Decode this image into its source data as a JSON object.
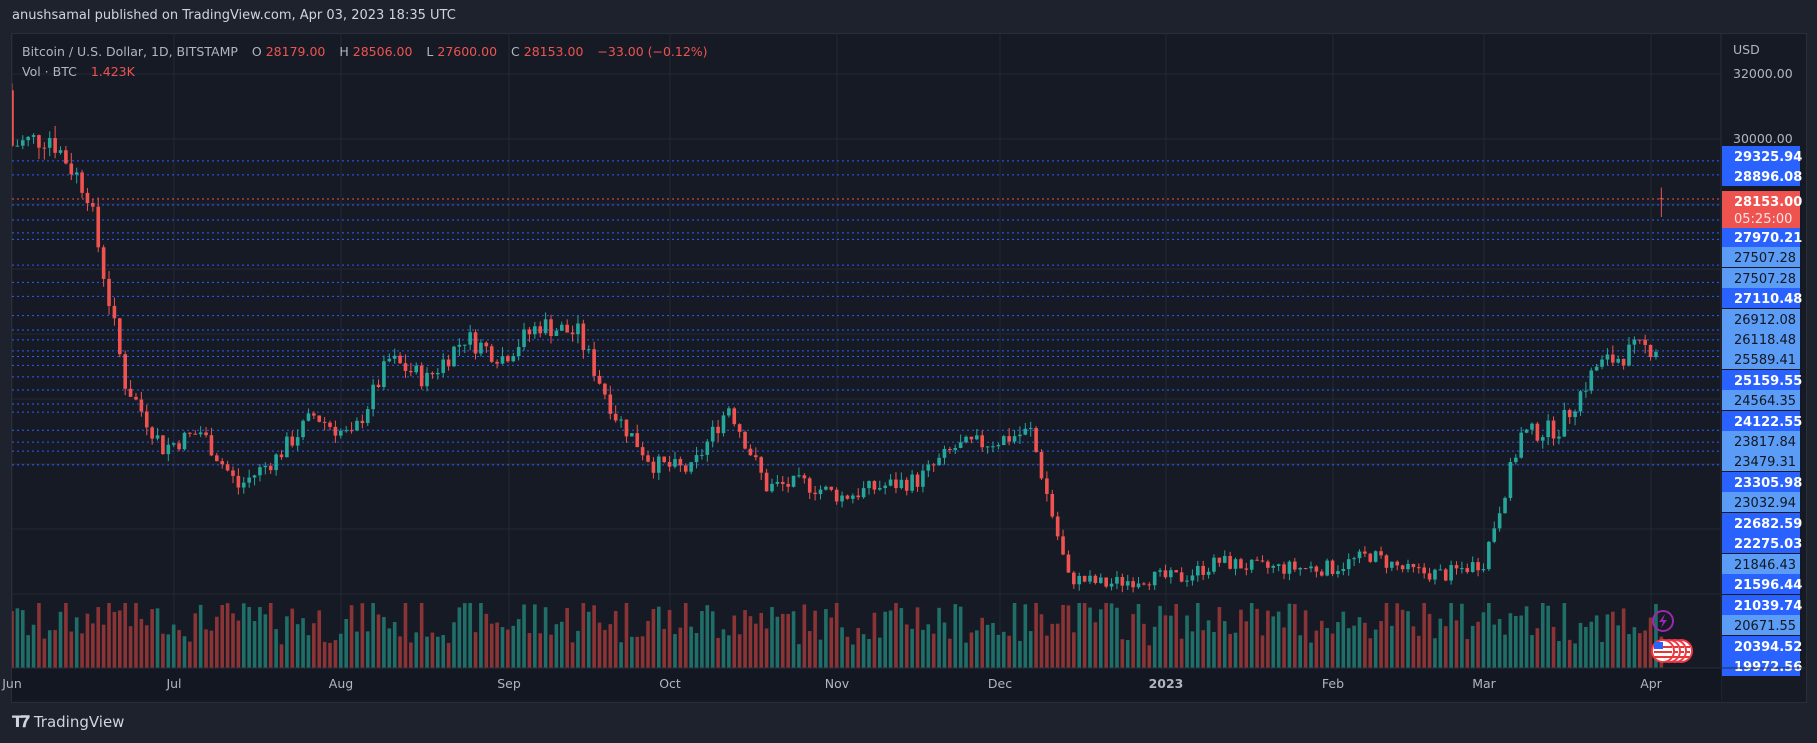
{
  "publish_line": "anushsamal published on TradingView.com, Apr 03, 2023 18:35 UTC",
  "legend": {
    "symbol": "Bitcoin / U.S. Dollar, 1D, BITSTAMP",
    "o_label": "O",
    "o_value": "28179.00",
    "h_label": "H",
    "h_value": "28506.00",
    "l_label": "L",
    "l_value": "27600.00",
    "c_label": "C",
    "c_value": "28153.00",
    "change": "−33.00 (−0.12%)",
    "vol_label": "Vol · BTC",
    "vol_value": "1.423K"
  },
  "price_scale": {
    "currency": "USD",
    "ticks": [
      "32000.00",
      "30000.00"
    ],
    "current_price": "28153.00",
    "countdown": "05:25:00",
    "level_labels": [
      {
        "value": "29325.94",
        "style": "dark"
      },
      {
        "value": "28896.08",
        "style": "dark"
      },
      {
        "value": "27970.21",
        "style": "dark"
      },
      {
        "value": "27507.28",
        "style": "light"
      },
      {
        "value": "27507.28",
        "style": "light"
      },
      {
        "value": "27110.48",
        "style": "dark"
      },
      {
        "value": "26912.08",
        "style": "light"
      },
      {
        "value": "26118.48",
        "style": "light"
      },
      {
        "value": "25589.41",
        "style": "light"
      },
      {
        "value": "25159.55",
        "style": "dark"
      },
      {
        "value": "24564.35",
        "style": "light"
      },
      {
        "value": "24122.55",
        "style": "dark"
      },
      {
        "value": "23817.84",
        "style": "light"
      },
      {
        "value": "23479.31",
        "style": "light"
      },
      {
        "value": "23305.98",
        "style": "dark"
      },
      {
        "value": "23032.94",
        "style": "light"
      },
      {
        "value": "22682.59",
        "style": "dark"
      },
      {
        "value": "22275.03",
        "style": "dark"
      },
      {
        "value": "21846.43",
        "style": "light"
      },
      {
        "value": "21596.44",
        "style": "dark"
      },
      {
        "value": "21039.74",
        "style": "dark"
      },
      {
        "value": "20671.55",
        "style": "light"
      },
      {
        "value": "20394.52",
        "style": "dark"
      },
      {
        "value": "19972.56",
        "style": "dark"
      }
    ]
  },
  "time_axis": [
    "Jun",
    "Jul",
    "Aug",
    "Sep",
    "Oct",
    "Nov",
    "Dec",
    "2023",
    "Feb",
    "Mar",
    "Apr"
  ],
  "footer": {
    "brand": "TradingView"
  },
  "colors": {
    "up": "#26a69a",
    "down": "#ef5350",
    "vol_up": "#1f6f68",
    "vol_down": "#8a3436",
    "level_line": "#2962ff",
    "current_line": "#ef5350",
    "label_dark": "#2962ff",
    "label_light": "#5b9cf6"
  },
  "chart_data": {
    "type": "candlestick",
    "title": "Bitcoin / U.S. Dollar, 1D, BITSTAMP",
    "xlabel": "",
    "ylabel": "USD",
    "ylim": [
      15300,
      32500
    ],
    "grid": true,
    "x_ticks": [
      "Jun",
      "Jul",
      "Aug",
      "Sep",
      "Oct",
      "Nov",
      "Dec",
      "2023",
      "Feb",
      "Mar",
      "Apr"
    ],
    "y_ticks": [
      32000,
      30000
    ],
    "horizontal_levels": [
      29325.94,
      28896.08,
      27970.21,
      27507.28,
      27507.28,
      27110.48,
      26912.08,
      26118.48,
      25589.41,
      25159.55,
      24564.35,
      24122.55,
      23817.84,
      23479.31,
      23305.98,
      23032.94,
      22682.59,
      22275.03,
      21846.43,
      21596.44,
      21039.74,
      20671.55,
      20394.52,
      19972.56
    ],
    "last_bar": {
      "date": "2023-04-03",
      "open": 28179.0,
      "high": 28506.0,
      "low": 27600.0,
      "close": 28153.0,
      "change": -33.0,
      "change_pct": -0.12,
      "volume_btc": 1423
    },
    "weekly_closes_approx": {
      "start_date": "2022-06-01",
      "values": [
        29800,
        30100,
        28400,
        22500,
        20500,
        21000,
        19300,
        20200,
        21500,
        20800,
        23200,
        22600,
        23900,
        23300,
        24300,
        24000,
        21500,
        20000,
        19800,
        21800,
        19300,
        19400,
        19000,
        19300,
        19500,
        20500,
        20700,
        21000,
        16500,
        16300,
        16500,
        16500,
        17000,
        16800,
        16800,
        16800,
        17200,
        16700,
        16600,
        17000,
        20900,
        21100,
        23000,
        23500,
        23700,
        22600,
        24300,
        24400,
        22000,
        21800,
        23600,
        26400,
        27900,
        27800,
        28000,
        28180
      ],
      "step_days": 7
    }
  }
}
